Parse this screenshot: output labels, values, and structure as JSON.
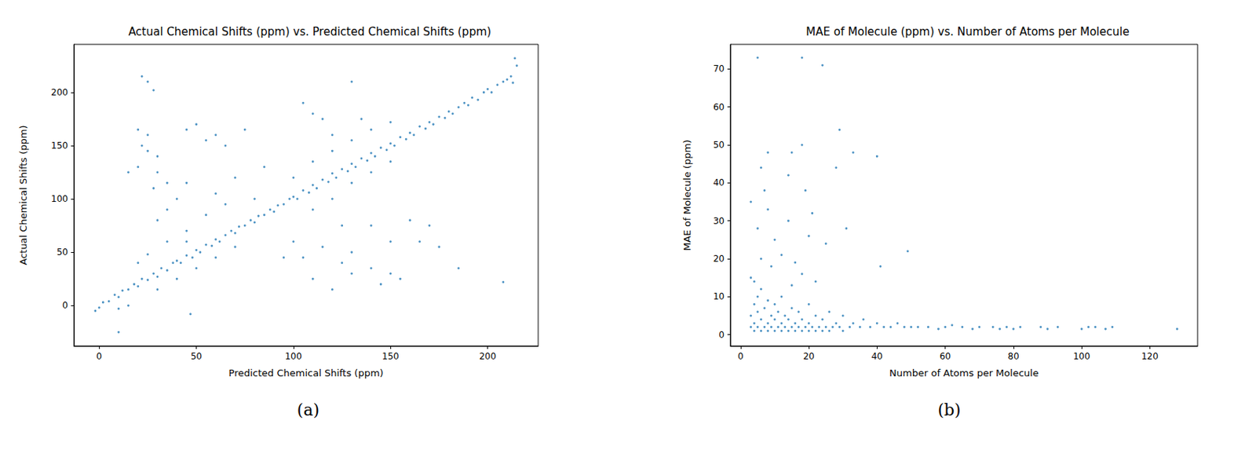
{
  "chart_data": [
    {
      "type": "scatter",
      "title": "Actual Chemical Shifts (ppm) vs. Predicted Chemical Shifts (ppm)",
      "x_label": "Predicted Chemical Shifts (ppm)",
      "y_label": "Actual Chemical Shifts (ppm)",
      "caption": "(a)",
      "color": "#1f77b4",
      "marker": "circle",
      "grid": false,
      "xlim": [
        -13,
        226
      ],
      "xticks": [
        0,
        50,
        100,
        150,
        200
      ],
      "ylim": [
        -38,
        245
      ],
      "yticks": [
        0,
        50,
        100,
        150,
        200
      ],
      "x": [
        -2,
        0,
        2,
        5,
        8,
        10,
        12,
        15,
        18,
        20,
        22,
        25,
        28,
        30,
        32,
        35,
        38,
        40,
        42,
        45,
        48,
        50,
        52,
        55,
        58,
        60,
        62,
        65,
        68,
        70,
        72,
        75,
        78,
        80,
        82,
        85,
        88,
        90,
        92,
        95,
        98,
        100,
        102,
        105,
        108,
        110,
        112,
        115,
        118,
        120,
        122,
        125,
        128,
        130,
        132,
        135,
        138,
        140,
        142,
        145,
        148,
        150,
        152,
        155,
        158,
        160,
        162,
        165,
        168,
        170,
        172,
        175,
        178,
        180,
        182,
        185,
        188,
        190,
        192,
        195,
        198,
        200,
        202,
        205,
        208,
        210,
        212,
        213,
        215,
        214,
        30,
        40,
        50,
        60,
        70,
        110,
        120,
        130,
        140,
        150,
        100,
        110,
        120,
        130,
        140,
        150,
        20,
        25,
        35,
        45,
        10,
        15,
        47,
        10,
        22,
        25,
        28,
        20,
        25,
        22,
        25,
        30,
        20,
        15,
        30,
        35,
        28,
        40,
        35,
        30,
        45,
        50,
        55,
        60,
        65,
        75,
        70,
        85,
        80,
        60,
        45,
        55,
        65,
        45,
        105,
        110,
        115,
        130,
        120,
        135,
        150,
        110,
        120,
        125,
        130,
        140,
        150,
        160,
        170,
        165,
        175,
        140,
        130,
        105,
        115,
        185,
        208,
        145,
        155,
        125,
        100,
        95
      ],
      "values": [
        -5,
        -2,
        3,
        4,
        10,
        8,
        14,
        15,
        20,
        18,
        25,
        24,
        30,
        27,
        35,
        33,
        40,
        42,
        40,
        47,
        45,
        52,
        50,
        57,
        56,
        62,
        60,
        66,
        70,
        68,
        74,
        75,
        80,
        78,
        84,
        85,
        90,
        88,
        94,
        95,
        100,
        102,
        100,
        108,
        106,
        113,
        110,
        118,
        116,
        124,
        120,
        128,
        126,
        133,
        130,
        138,
        136,
        143,
        140,
        148,
        146,
        152,
        150,
        158,
        156,
        162,
        160,
        168,
        166,
        172,
        170,
        177,
        176,
        182,
        180,
        186,
        190,
        188,
        195,
        193,
        200,
        203,
        200,
        207,
        210,
        212,
        215,
        209,
        225,
        232,
        15,
        25,
        35,
        45,
        55,
        90,
        100,
        115,
        125,
        135,
        120,
        135,
        145,
        155,
        165,
        172,
        40,
        48,
        60,
        70,
        -3,
        0,
        -8,
        -25,
        215,
        210,
        202,
        165,
        160,
        150,
        145,
        140,
        130,
        125,
        125,
        115,
        110,
        100,
        90,
        80,
        165,
        170,
        155,
        160,
        150,
        165,
        120,
        130,
        100,
        105,
        115,
        85,
        95,
        60,
        190,
        180,
        175,
        210,
        160,
        175,
        30,
        25,
        15,
        40,
        50,
        35,
        60,
        80,
        75,
        60,
        55,
        75,
        30,
        45,
        55,
        35,
        22,
        20,
        25,
        75,
        60,
        45
      ]
    },
    {
      "type": "scatter",
      "title": "MAE of Molecule (ppm) vs. Number of Atoms per Molecule",
      "x_label": "Number of Atoms per Molecule",
      "y_label": "MAE of Molecule (ppm)",
      "caption": "(b)",
      "color": "#1f77b4",
      "marker": "circle",
      "grid": false,
      "xlim": [
        -3,
        134
      ],
      "xticks": [
        0,
        20,
        40,
        60,
        80,
        100,
        120
      ],
      "ylim": [
        -3,
        76.5
      ],
      "yticks": [
        0,
        10,
        20,
        30,
        40,
        50,
        60,
        70
      ],
      "x": [
        3,
        3,
        3,
        3,
        4,
        4,
        4,
        4,
        5,
        5,
        5,
        5,
        5,
        6,
        6,
        6,
        6,
        6,
        7,
        7,
        7,
        8,
        8,
        8,
        8,
        8,
        9,
        9,
        9,
        10,
        10,
        10,
        10,
        11,
        11,
        12,
        12,
        12,
        12,
        13,
        13,
        14,
        14,
        14,
        14,
        15,
        15,
        15,
        15,
        16,
        16,
        16,
        17,
        17,
        18,
        18,
        18,
        18,
        18,
        19,
        19,
        20,
        20,
        20,
        20,
        21,
        21,
        22,
        22,
        22,
        23,
        24,
        24,
        24,
        25,
        25,
        26,
        26,
        27,
        28,
        28,
        29,
        29,
        30,
        30,
        31,
        32,
        33,
        33,
        35,
        36,
        38,
        40,
        40,
        41,
        42,
        44,
        46,
        48,
        49,
        50,
        52,
        55,
        58,
        60,
        62,
        65,
        68,
        70,
        74,
        76,
        78,
        80,
        82,
        88,
        90,
        93,
        100,
        102,
        104,
        107,
        109,
        128
      ],
      "values": [
        2,
        5,
        15,
        35,
        1,
        3,
        8,
        14,
        2,
        6,
        10,
        73,
        28,
        1,
        4,
        12,
        44,
        20,
        2,
        7,
        38,
        1,
        3,
        9,
        33,
        48,
        2,
        5,
        18,
        1,
        4,
        8,
        25,
        2,
        6,
        1,
        3,
        10,
        21,
        2,
        5,
        1,
        4,
        42,
        30,
        2,
        7,
        48,
        13,
        1,
        3,
        19,
        2,
        6,
        1,
        4,
        73,
        50,
        16,
        2,
        38,
        1,
        3,
        8,
        26,
        2,
        32,
        1,
        5,
        14,
        2,
        1,
        4,
        71,
        2,
        24,
        1,
        6,
        2,
        44,
        3,
        54,
        2,
        1,
        5,
        28,
        2,
        48,
        3,
        2,
        4,
        2,
        3,
        47,
        18,
        2,
        2,
        3,
        2,
        22,
        2,
        2,
        2,
        1.5,
        2,
        2.5,
        2,
        1.5,
        2,
        2,
        1.5,
        2,
        1.5,
        2,
        2,
        1.5,
        2,
        1.5,
        2,
        2,
        1.5,
        2,
        1.5
      ]
    }
  ]
}
